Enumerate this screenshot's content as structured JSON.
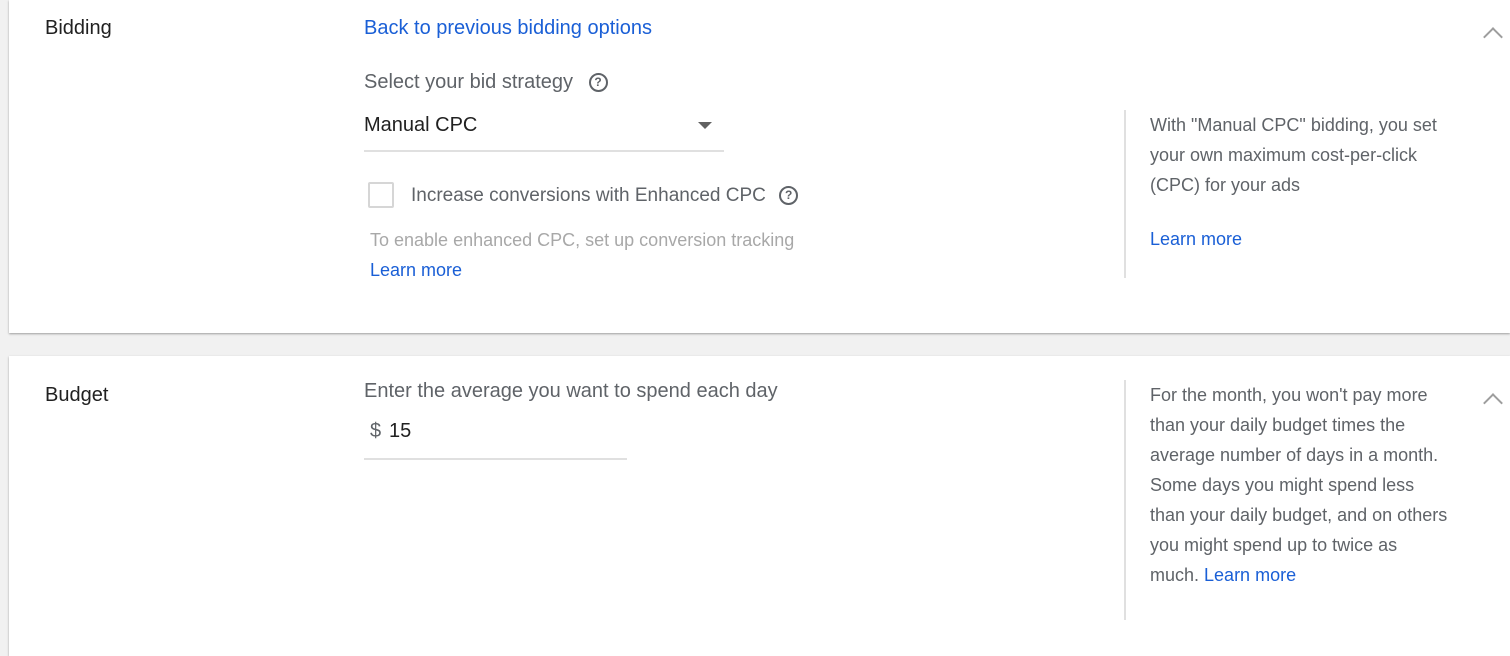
{
  "bidding": {
    "title": "Bidding",
    "back_link": "Back to previous bidding options",
    "strategy_label": "Select your bid strategy",
    "strategy_value": "Manual CPC",
    "ecpc_label": "Increase conversions with Enhanced CPC",
    "ecpc_checked": false,
    "ecpc_note": "To enable enhanced CPC, set up conversion tracking",
    "learn_more": "Learn more",
    "side_text": "With \"Manual CPC\" bidding, you set your own maximum cost-per-click (CPC) for your ads",
    "side_learn_more": "Learn more"
  },
  "budget": {
    "title": "Budget",
    "label": "Enter the average you want to spend each day",
    "currency": "$",
    "value": "15",
    "side_text": "For the month, you won't pay more than your daily budget times the average number of days in a month. Some days you might spend less than your daily budget, and on others you might spend up to twice as much. ",
    "side_learn_more": "Learn more"
  }
}
